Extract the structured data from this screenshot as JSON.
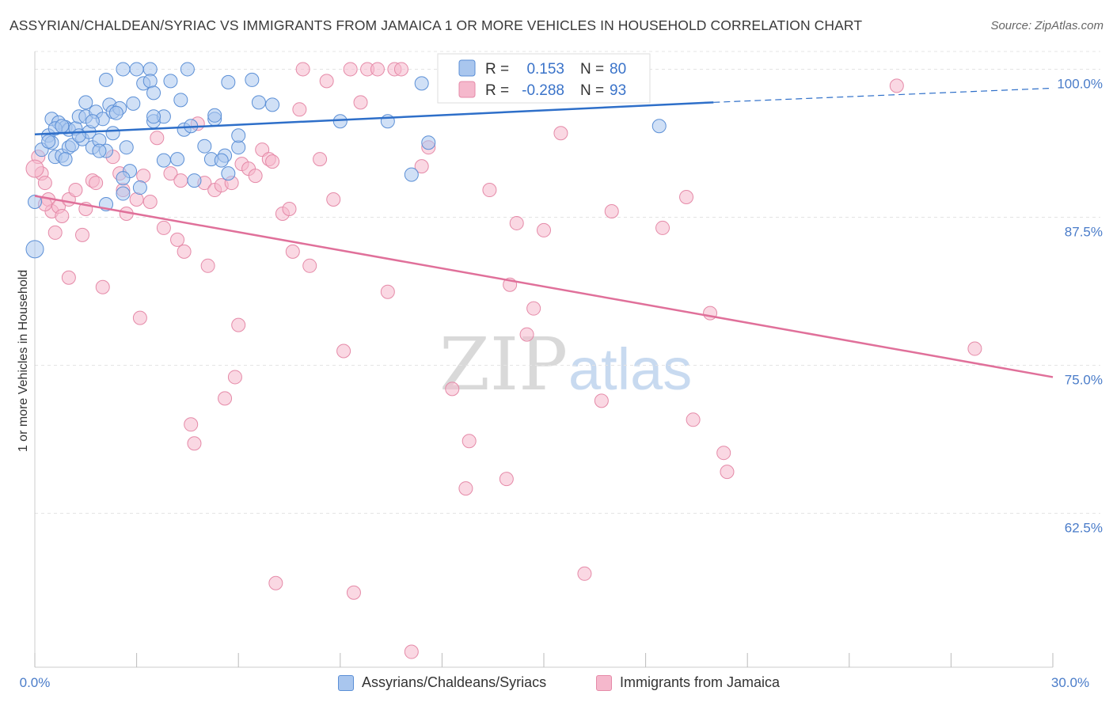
{
  "header": {
    "title": "ASSYRIAN/CHALDEAN/SYRIAC VS IMMIGRANTS FROM JAMAICA 1 OR MORE VEHICLES IN HOUSEHOLD CORRELATION CHART",
    "source": "Source: ZipAtlas.com"
  },
  "watermark": {
    "zip": "ZIP",
    "atlas": "atlas"
  },
  "legend_box": {
    "rows": [
      {
        "r_label": "R =",
        "r_value": "0.153",
        "n_label": "N =",
        "n_value": "80"
      },
      {
        "r_label": "R =",
        "r_value": "-0.288",
        "n_label": "N =",
        "n_value": "93"
      }
    ]
  },
  "bottom_legend": {
    "series1": "Assyrians/Chaldeans/Syriacs",
    "series2": "Immigrants from Jamaica"
  },
  "chart_data": {
    "type": "scatter",
    "title": "ASSYRIAN/CHALDEAN/SYRIAC VS IMMIGRANTS FROM JAMAICA 1 OR MORE VEHICLES IN HOUSEHOLD CORRELATION CHART",
    "xlabel": "",
    "ylabel": "1 or more Vehicles in Household",
    "xlim": [
      0,
      30
    ],
    "ylim": [
      49.5,
      101.5
    ],
    "x_tick_labels": [
      "0.0%",
      "30.0%"
    ],
    "y_tick_labels": [
      "100.0%",
      "87.5%",
      "75.0%",
      "62.5%"
    ],
    "y_ticks": [
      100,
      87.5,
      75,
      62.5
    ],
    "grid": true,
    "legend": "bottom-center",
    "colors": {
      "series1_fill": "#a9c6ee",
      "series1_stroke": "#5b8fd6",
      "series1_line": "#2e6fc9",
      "series2_fill": "#f5b8cc",
      "series2_stroke": "#e58aa8",
      "series2_line": "#e0709a",
      "tick_text": "#4a7cc9"
    },
    "series": [
      {
        "name": "Assyrians/Chaldeans/Syriacs",
        "r": 0.153,
        "n": 80,
        "trend": {
          "x": [
            0,
            20
          ],
          "y": [
            94.5,
            97.2
          ],
          "dashed_to": [
            30,
            98.4
          ]
        },
        "points": [
          [
            0.2,
            93.2
          ],
          [
            0.4,
            94.4
          ],
          [
            0.5,
            93.8
          ],
          [
            0.6,
            92.6
          ],
          [
            0.5,
            95.8
          ],
          [
            0.7,
            95.5
          ],
          [
            0.9,
            95.1
          ],
          [
            1.0,
            94.9
          ],
          [
            0.8,
            92.7
          ],
          [
            1.0,
            93.4
          ],
          [
            1.1,
            93.6
          ],
          [
            1.2,
            95.0
          ],
          [
            1.3,
            96.0
          ],
          [
            1.4,
            94.1
          ],
          [
            1.5,
            96.0
          ],
          [
            1.5,
            97.2
          ],
          [
            1.6,
            94.7
          ],
          [
            1.7,
            93.4
          ],
          [
            1.8,
            96.4
          ],
          [
            1.9,
            94.0
          ],
          [
            2.0,
            95.8
          ],
          [
            2.1,
            93.1
          ],
          [
            2.3,
            94.6
          ],
          [
            2.2,
            97.0
          ],
          [
            2.1,
            99.1
          ],
          [
            2.3,
            96.4
          ],
          [
            2.5,
            96.7
          ],
          [
            2.7,
            93.4
          ],
          [
            2.8,
            91.4
          ],
          [
            2.6,
            90.8
          ],
          [
            2.6,
            89.5
          ],
          [
            2.9,
            97.1
          ],
          [
            2.6,
            100.0
          ],
          [
            3.0,
            100.0
          ],
          [
            3.2,
            98.8
          ],
          [
            3.4,
            100.0
          ],
          [
            3.4,
            99.0
          ],
          [
            3.5,
            98.0
          ],
          [
            3.5,
            95.6
          ],
          [
            3.8,
            96.0
          ],
          [
            3.8,
            92.3
          ],
          [
            4.0,
            99.0
          ],
          [
            4.3,
            97.4
          ],
          [
            4.4,
            94.9
          ],
          [
            4.5,
            100.0
          ],
          [
            4.2,
            92.4
          ],
          [
            4.7,
            90.6
          ],
          [
            5.0,
            93.5
          ],
          [
            5.2,
            92.4
          ],
          [
            5.3,
            95.8
          ],
          [
            5.3,
            96.1
          ],
          [
            5.6,
            92.7
          ],
          [
            5.5,
            92.3
          ],
          [
            5.7,
            91.2
          ],
          [
            5.7,
            98.9
          ],
          [
            6.0,
            93.4
          ],
          [
            6.0,
            94.4
          ],
          [
            6.4,
            99.1
          ],
          [
            6.6,
            97.2
          ],
          [
            7.0,
            97.0
          ],
          [
            3.1,
            90.0
          ],
          [
            2.1,
            88.6
          ],
          [
            0.4,
            93.9
          ],
          [
            0.9,
            92.4
          ],
          [
            0.6,
            95.0
          ],
          [
            0.8,
            95.2
          ],
          [
            1.3,
            94.4
          ],
          [
            1.7,
            95.6
          ],
          [
            1.9,
            93.1
          ],
          [
            2.4,
            96.3
          ],
          [
            3.5,
            96.0
          ],
          [
            4.6,
            95.2
          ],
          [
            9.0,
            95.6
          ],
          [
            10.4,
            95.6
          ],
          [
            11.1,
            91.1
          ],
          [
            11.4,
            98.8
          ],
          [
            11.6,
            93.8
          ],
          [
            18.4,
            95.2
          ],
          [
            0.0,
            84.8
          ],
          [
            0.0,
            88.8
          ]
        ]
      },
      {
        "name": "Immigrants from Jamaica",
        "r": -0.288,
        "n": 93,
        "trend": {
          "x": [
            0,
            30
          ],
          "y": [
            89.3,
            74.0
          ]
        },
        "points": [
          [
            0.1,
            92.6
          ],
          [
            0.2,
            91.2
          ],
          [
            0.3,
            90.4
          ],
          [
            0.4,
            89.0
          ],
          [
            0.5,
            88.0
          ],
          [
            0.6,
            86.2
          ],
          [
            0.7,
            88.4
          ],
          [
            0.8,
            87.6
          ],
          [
            1.0,
            89.0
          ],
          [
            1.2,
            89.8
          ],
          [
            1.4,
            86.0
          ],
          [
            1.5,
            88.2
          ],
          [
            1.7,
            90.6
          ],
          [
            1.0,
            82.4
          ],
          [
            1.8,
            90.4
          ],
          [
            2.0,
            81.6
          ],
          [
            2.3,
            92.6
          ],
          [
            2.5,
            91.2
          ],
          [
            2.6,
            89.8
          ],
          [
            2.7,
            87.8
          ],
          [
            3.0,
            89.0
          ],
          [
            3.1,
            79.0
          ],
          [
            3.2,
            91.0
          ],
          [
            3.4,
            88.8
          ],
          [
            3.6,
            94.2
          ],
          [
            3.8,
            86.6
          ],
          [
            4.0,
            91.2
          ],
          [
            4.2,
            85.6
          ],
          [
            4.3,
            90.6
          ],
          [
            4.4,
            84.6
          ],
          [
            4.6,
            70.0
          ],
          [
            4.7,
            68.4
          ],
          [
            4.8,
            95.4
          ],
          [
            5.0,
            90.4
          ],
          [
            5.1,
            83.4
          ],
          [
            5.3,
            89.8
          ],
          [
            5.5,
            90.2
          ],
          [
            5.6,
            72.2
          ],
          [
            5.8,
            90.4
          ],
          [
            5.9,
            74.0
          ],
          [
            6.0,
            78.4
          ],
          [
            6.1,
            92.0
          ],
          [
            6.3,
            91.6
          ],
          [
            6.5,
            91.0
          ],
          [
            6.7,
            93.2
          ],
          [
            6.9,
            92.4
          ],
          [
            7.0,
            92.2
          ],
          [
            7.1,
            56.6
          ],
          [
            7.3,
            87.8
          ],
          [
            7.5,
            88.2
          ],
          [
            7.6,
            84.6
          ],
          [
            7.8,
            96.6
          ],
          [
            7.9,
            100.0
          ],
          [
            8.1,
            83.4
          ],
          [
            8.4,
            92.4
          ],
          [
            8.6,
            99.0
          ],
          [
            8.8,
            89.0
          ],
          [
            9.1,
            76.2
          ],
          [
            9.3,
            100.0
          ],
          [
            9.4,
            55.8
          ],
          [
            9.6,
            97.2
          ],
          [
            9.8,
            100.0
          ],
          [
            10.1,
            100.0
          ],
          [
            10.4,
            81.2
          ],
          [
            10.6,
            100.0
          ],
          [
            10.8,
            100.0
          ],
          [
            11.1,
            50.8
          ],
          [
            11.6,
            93.4
          ],
          [
            11.4,
            91.8
          ],
          [
            12.3,
            73.0
          ],
          [
            12.7,
            64.6
          ],
          [
            12.8,
            68.6
          ],
          [
            13.9,
            65.4
          ],
          [
            14.0,
            81.8
          ],
          [
            14.2,
            87.0
          ],
          [
            14.5,
            77.6
          ],
          [
            14.7,
            79.8
          ],
          [
            15.0,
            86.4
          ],
          [
            15.5,
            94.6
          ],
          [
            16.2,
            57.4
          ],
          [
            16.7,
            72.0
          ],
          [
            17.0,
            88.0
          ],
          [
            18.5,
            86.6
          ],
          [
            19.2,
            89.2
          ],
          [
            19.4,
            70.4
          ],
          [
            19.9,
            79.4
          ],
          [
            20.3,
            67.6
          ],
          [
            20.4,
            66.0
          ],
          [
            25.4,
            98.6
          ],
          [
            27.7,
            76.4
          ],
          [
            0.0,
            91.6
          ],
          [
            0.3,
            88.6
          ],
          [
            13.4,
            89.8
          ]
        ]
      }
    ]
  }
}
